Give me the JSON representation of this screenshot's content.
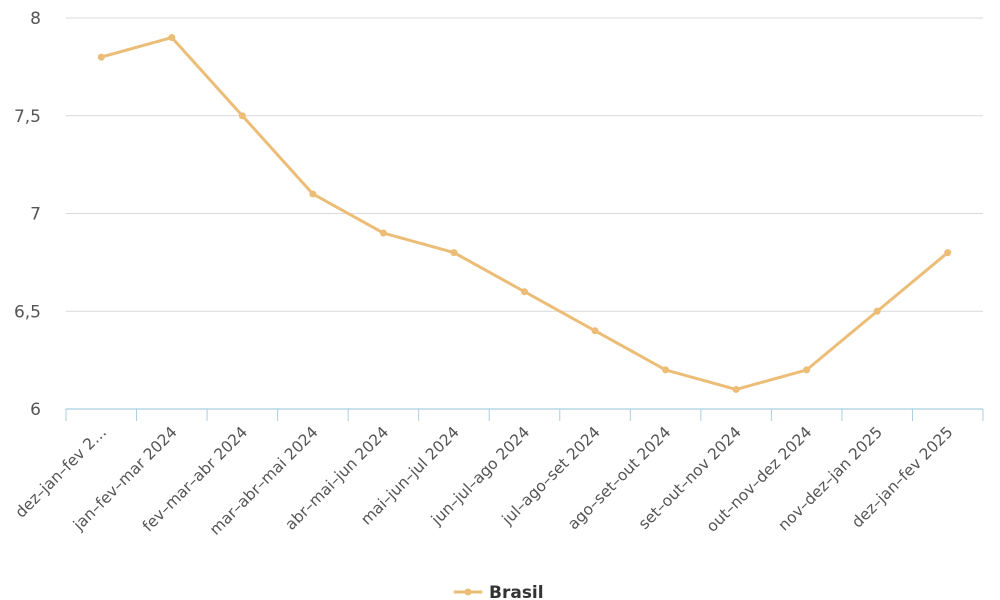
{
  "chart_data": {
    "type": "line",
    "categories": [
      "dez–jan–fev 2…",
      "jan–fev–mar 2024",
      "fev–mar–abr 2024",
      "mar–abr–mai 2024",
      "abr–mai–jun 2024",
      "mai–jun–jul 2024",
      "jun–jul–ago 2024",
      "jul–ago–set 2024",
      "ago–set–out 2024",
      "set–out–nov 2024",
      "out–nov–dez 2024",
      "nov–dez–jan 2025",
      "dez–jan–fev 2025"
    ],
    "series": [
      {
        "name": "Brasil",
        "values": [
          7.8,
          7.9,
          7.5,
          7.1,
          6.9,
          6.8,
          6.6,
          6.4,
          6.2,
          6.1,
          6.2,
          6.5,
          6.8
        ]
      }
    ],
    "ylim": [
      6,
      8
    ],
    "yticks": [
      6,
      6.5,
      7,
      7.5,
      8
    ],
    "ytick_labels": [
      "6",
      "6,5",
      "7",
      "7,5",
      "8"
    ],
    "grid": true,
    "legend_position": "bottom-center",
    "colors": {
      "series": "#ecbd76",
      "grid": "#d9d9d9",
      "axis": "#a9cfe0"
    }
  },
  "legend": {
    "label": "Brasil"
  }
}
